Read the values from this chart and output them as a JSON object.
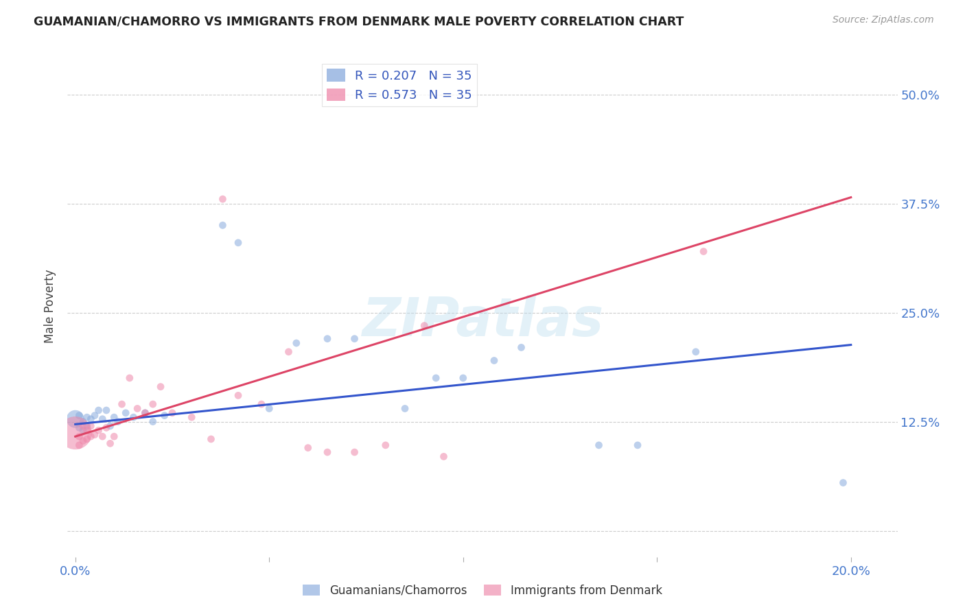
{
  "title": "GUAMANIAN/CHAMORRO VS IMMIGRANTS FROM DENMARK MALE POVERTY CORRELATION CHART",
  "source": "Source: ZipAtlas.com",
  "ylabel_label": "Male Poverty",
  "xlim": [
    -0.002,
    0.212
  ],
  "ylim": [
    -0.03,
    0.545
  ],
  "blue_color": "#88AADD",
  "pink_color": "#EE88AA",
  "blue_line_color": "#3355CC",
  "pink_line_color": "#DD4466",
  "R_blue": 0.207,
  "N_blue": 35,
  "R_pink": 0.573,
  "N_pink": 35,
  "legend_label_blue": "Guamanians/Chamorros",
  "legend_label_pink": "Immigrants from Denmark",
  "watermark": "ZIPatlas",
  "blue_x": [
    0.0,
    0.001,
    0.001,
    0.002,
    0.002,
    0.003,
    0.003,
    0.004,
    0.005,
    0.006,
    0.007,
    0.008,
    0.009,
    0.01,
    0.011,
    0.013,
    0.015,
    0.018,
    0.02,
    0.023,
    0.038,
    0.042,
    0.05,
    0.057,
    0.065,
    0.072,
    0.085,
    0.093,
    0.1,
    0.108,
    0.115,
    0.135,
    0.145,
    0.16,
    0.198
  ],
  "blue_y": [
    0.128,
    0.132,
    0.118,
    0.125,
    0.115,
    0.13,
    0.12,
    0.128,
    0.132,
    0.138,
    0.128,
    0.138,
    0.12,
    0.13,
    0.125,
    0.135,
    0.13,
    0.135,
    0.125,
    0.132,
    0.35,
    0.33,
    0.14,
    0.215,
    0.22,
    0.22,
    0.14,
    0.175,
    0.175,
    0.195,
    0.21,
    0.098,
    0.098,
    0.205,
    0.055
  ],
  "blue_sizes": [
    350,
    60,
    60,
    60,
    60,
    60,
    60,
    60,
    60,
    60,
    60,
    60,
    60,
    60,
    60,
    60,
    60,
    60,
    60,
    60,
    60,
    60,
    60,
    60,
    60,
    60,
    60,
    60,
    60,
    60,
    60,
    60,
    60,
    60,
    60
  ],
  "pink_x": [
    0.0,
    0.001,
    0.001,
    0.002,
    0.002,
    0.003,
    0.003,
    0.004,
    0.004,
    0.005,
    0.006,
    0.007,
    0.008,
    0.009,
    0.01,
    0.012,
    0.014,
    0.016,
    0.018,
    0.02,
    0.022,
    0.025,
    0.03,
    0.035,
    0.038,
    0.042,
    0.048,
    0.055,
    0.06,
    0.065,
    0.072,
    0.08,
    0.09,
    0.095,
    0.162
  ],
  "pink_y": [
    0.112,
    0.108,
    0.098,
    0.12,
    0.103,
    0.115,
    0.105,
    0.12,
    0.108,
    0.11,
    0.115,
    0.108,
    0.118,
    0.1,
    0.108,
    0.145,
    0.175,
    0.14,
    0.135,
    0.145,
    0.165,
    0.135,
    0.13,
    0.105,
    0.38,
    0.155,
    0.145,
    0.205,
    0.095,
    0.09,
    0.09,
    0.098,
    0.235,
    0.085,
    0.32
  ],
  "pink_sizes": [
    1200,
    60,
    60,
    60,
    60,
    60,
    60,
    60,
    60,
    60,
    60,
    60,
    60,
    60,
    60,
    60,
    60,
    60,
    60,
    60,
    60,
    60,
    60,
    60,
    60,
    60,
    60,
    60,
    60,
    60,
    60,
    60,
    60,
    60,
    60
  ],
  "blue_trendline_x": [
    0.0,
    0.2
  ],
  "blue_trendline_y": [
    0.122,
    0.213
  ],
  "pink_trendline_x": [
    0.0,
    0.2
  ],
  "pink_trendline_y": [
    0.108,
    0.382
  ]
}
